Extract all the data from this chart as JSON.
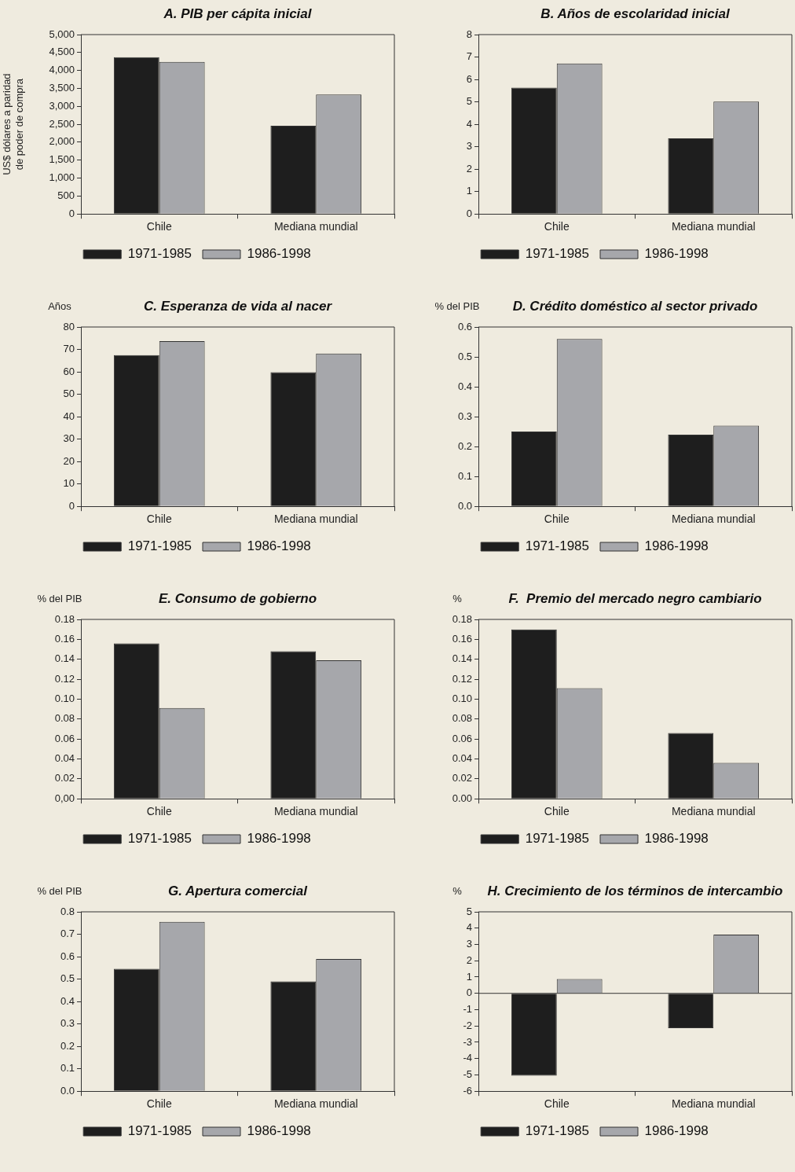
{
  "chart_data": [
    {
      "type": "bar",
      "title": "A. PIB per cápita inicial",
      "ylabel": "US$ dólares a paridad de poder de compra",
      "categories": [
        "Chile",
        "Mediana mundial"
      ],
      "series": [
        {
          "name": "1971-1985",
          "color": "#1e1e1e",
          "values": [
            4370,
            2460
          ]
        },
        {
          "name": "1986-1998",
          "color": "#a6a7ab",
          "values": [
            4240,
            3330
          ]
        }
      ],
      "ylim": [
        0,
        5000
      ],
      "yticks": [
        {
          "value": 0,
          "label": "0"
        },
        {
          "value": 500,
          "label": "500"
        },
        {
          "value": 1000,
          "label": "1,000"
        },
        {
          "value": 1500,
          "label": "1,500"
        },
        {
          "value": 2000,
          "label": "2,000"
        },
        {
          "value": 2500,
          "label": "2,500"
        },
        {
          "value": 3000,
          "label": "3,000"
        },
        {
          "value": 3500,
          "label": "3,500"
        },
        {
          "value": 4000,
          "label": "4,000"
        },
        {
          "value": 4500,
          "label": "4,500"
        },
        {
          "value": 5000,
          "label": "5,000"
        }
      ],
      "legend": "bottom"
    },
    {
      "type": "bar",
      "title": "B. Años de escolaridad inicial",
      "categories": [
        "Chile",
        "Mediana mundial"
      ],
      "series": [
        {
          "name": "1971-1985",
          "color": "#1e1e1e",
          "values": [
            5.63,
            3.37
          ]
        },
        {
          "name": "1986-1998",
          "color": "#a6a7ab",
          "values": [
            6.71,
            5.01
          ]
        }
      ],
      "ylim": [
        0,
        8
      ],
      "yticks": [
        0,
        1,
        2,
        3,
        4,
        5,
        6,
        7,
        8
      ],
      "legend": "bottom"
    },
    {
      "type": "bar",
      "title": "C. Esperanza de vida al nacer",
      "ylabel": "Años",
      "categories": [
        "Chile",
        "Mediana mundial"
      ],
      "series": [
        {
          "name": "1971-1985",
          "color": "#1e1e1e",
          "values": [
            67.5,
            59.8
          ]
        },
        {
          "name": "1986-1998",
          "color": "#a6a7ab",
          "values": [
            73.7,
            68.2
          ]
        }
      ],
      "ylim": [
        0,
        80
      ],
      "yticks": [
        0,
        10,
        20,
        30,
        40,
        50,
        60,
        70,
        80
      ],
      "legend": "bottom"
    },
    {
      "type": "bar",
      "title": "D. Crédito doméstico al sector privado",
      "ylabel": "% del PIB",
      "categories": [
        "Chile",
        "Mediana mundial"
      ],
      "series": [
        {
          "name": "1971-1985",
          "color": "#1e1e1e",
          "values": [
            0.25,
            0.24
          ]
        },
        {
          "name": "1986-1998",
          "color": "#a6a7ab",
          "values": [
            0.56,
            0.27
          ]
        }
      ],
      "ylim": [
        0,
        0.6
      ],
      "yticks": [
        {
          "value": 0,
          "label": "0.0"
        },
        0.1,
        0.2,
        0.3,
        0.4,
        0.5,
        0.6
      ],
      "legend": "bottom"
    },
    {
      "type": "bar",
      "title": "E. Consumo de gobierno",
      "ylabel": "% del PIB",
      "categories": [
        "Chile",
        "Mediana mundial"
      ],
      "series": [
        {
          "name": "1971-1985",
          "color": "#1e1e1e",
          "values": [
            0.156,
            0.148
          ]
        },
        {
          "name": "1986-1998",
          "color": "#a6a7ab",
          "values": [
            0.091,
            0.139
          ]
        }
      ],
      "ylim": [
        0,
        0.18
      ],
      "yticks": [
        {
          "value": 0,
          "label": "0,00"
        },
        {
          "value": 0.02,
          "label": "0.02"
        },
        {
          "value": 0.04,
          "label": "0.04"
        },
        {
          "value": 0.06,
          "label": "0.06"
        },
        {
          "value": 0.08,
          "label": "0.08"
        },
        {
          "value": 0.1,
          "label": "0.10"
        },
        {
          "value": 0.12,
          "label": "0.12"
        },
        {
          "value": 0.14,
          "label": "0.14"
        },
        {
          "value": 0.16,
          "label": "0.16"
        },
        {
          "value": 0.18,
          "label": "0.18"
        }
      ],
      "legend": "bottom"
    },
    {
      "type": "bar",
      "title": "F.  Premio del mercado negro cambiario",
      "ylabel": "%",
      "categories": [
        "Chile",
        "Mediana mundial"
      ],
      "series": [
        {
          "name": "1971-1985",
          "color": "#1e1e1e",
          "values": [
            0.17,
            0.066
          ]
        },
        {
          "name": "1986-1998",
          "color": "#a6a7ab",
          "values": [
            0.111,
            0.036
          ]
        }
      ],
      "ylim": [
        0,
        0.18
      ],
      "yticks": [
        {
          "value": 0,
          "label": "0.00"
        },
        {
          "value": 0.02,
          "label": "0.02"
        },
        {
          "value": 0.04,
          "label": "0.04"
        },
        {
          "value": 0.06,
          "label": "0.06"
        },
        {
          "value": 0.08,
          "label": "0.08"
        },
        {
          "value": 0.1,
          "label": "0.10"
        },
        {
          "value": 0.12,
          "label": "0.12"
        },
        {
          "value": 0.14,
          "label": "0.14"
        },
        {
          "value": 0.16,
          "label": "0.16"
        },
        {
          "value": 0.18,
          "label": "0.18"
        }
      ],
      "legend": "bottom"
    },
    {
      "type": "bar",
      "title": "G. Apertura comercial",
      "ylabel": "% del PIB",
      "categories": [
        "Chile",
        "Mediana mundial"
      ],
      "series": [
        {
          "name": "1971-1985",
          "color": "#1e1e1e",
          "values": [
            0.546,
            0.49
          ]
        },
        {
          "name": "1986-1998",
          "color": "#a6a7ab",
          "values": [
            0.755,
            0.59
          ]
        }
      ],
      "ylim": [
        0,
        0.8
      ],
      "yticks": [
        {
          "value": 0,
          "label": "0.0"
        },
        0.1,
        0.2,
        0.3,
        0.4,
        0.5,
        0.6,
        0.7,
        0.8
      ],
      "legend": "bottom"
    },
    {
      "type": "bar",
      "title": "H. Crecimiento de los términos de intercambio",
      "ylabel": "%",
      "categories": [
        "Chile",
        "Mediana mundial"
      ],
      "series": [
        {
          "name": "1971-1985",
          "color": "#1e1e1e",
          "values": [
            -5.05,
            -2.13
          ]
        },
        {
          "name": "1986-1998",
          "color": "#a6a7ab",
          "values": [
            0.88,
            3.6
          ]
        }
      ],
      "ylim": [
        -6,
        5
      ],
      "yticks": [
        -6,
        -5,
        -4,
        -3,
        -2,
        -1,
        0,
        1,
        2,
        3,
        4,
        5
      ],
      "legend": "bottom"
    }
  ]
}
